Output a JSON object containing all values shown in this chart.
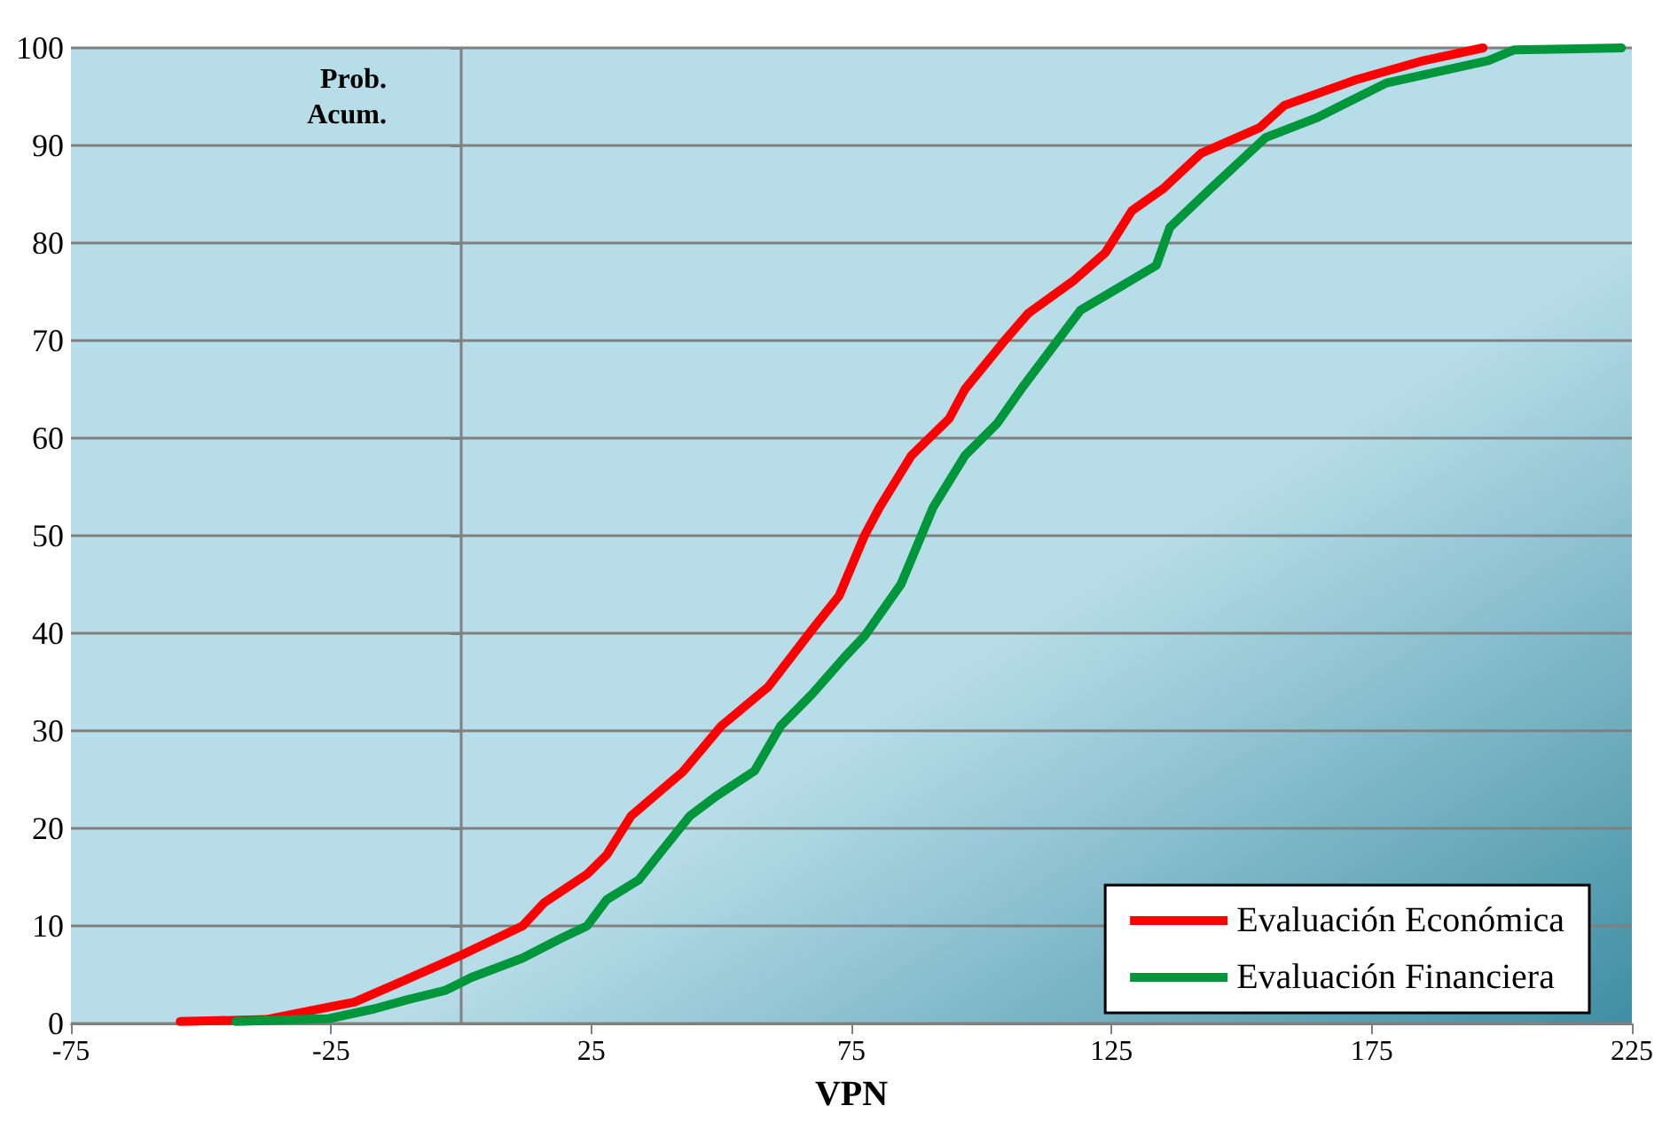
{
  "chart_data": {
    "type": "line",
    "xlabel": "VPN",
    "ylabel": "Prob. Acum.",
    "xlim": [
      -75,
      225
    ],
    "xticks": [
      -75,
      -25,
      25,
      75,
      125,
      175,
      225
    ],
    "ylim": [
      0,
      100
    ],
    "yticks": [
      0,
      10,
      20,
      30,
      40,
      50,
      60,
      70,
      80,
      90,
      100
    ],
    "grid": "y",
    "legend": "bottom right",
    "marker": "none",
    "line_style": "solid",
    "series": [
      {
        "name": "Evaluación Económica",
        "color": "#ff0000",
        "x": [
          -54,
          -37.5,
          -29,
          -20.5,
          -11,
          0,
          11.8,
          16,
          24.2,
          28,
          32.7,
          42.6,
          50,
          59,
          67.5,
          72.6,
          77.5,
          80.4,
          86.5,
          93.8,
          96.8,
          104.3,
          109,
          117.6,
          123.8,
          128.9,
          135,
          142.2,
          153.4,
          158.2,
          171.8,
          185,
          196.4
        ],
        "values": [
          0.2,
          0.4,
          1.3,
          2.2,
          4.4,
          7,
          10,
          12.4,
          15.3,
          17.3,
          21.3,
          25.8,
          30.5,
          34.5,
          40.4,
          43.8,
          50,
          52.9,
          58.2,
          62,
          65,
          69.9,
          72.8,
          76.1,
          79,
          83.3,
          85.6,
          89.2,
          91.8,
          94.1,
          96.7,
          98.7,
          100
        ]
      },
      {
        "name": "Evaluación Financiera",
        "color": "#00963c",
        "x": [
          -43.3,
          -25.4,
          -16.7,
          -10.6,
          -3,
          1.9,
          11.8,
          19.1,
          24.2,
          28,
          34.1,
          39,
          44,
          49,
          56.4,
          61.4,
          67.5,
          73.6,
          77.5,
          84.5,
          90.7,
          96.8,
          103,
          108,
          119,
          133.6,
          136.2,
          143.5,
          154.6,
          164.3,
          177.8,
          197.4,
          202.4,
          223
        ],
        "values": [
          0.2,
          0.5,
          1.5,
          2.4,
          3.4,
          4.7,
          6.7,
          8.7,
          10,
          12.7,
          14.7,
          18,
          21.3,
          23.3,
          25.9,
          30.5,
          33.8,
          37.5,
          39.7,
          45,
          52.9,
          58.2,
          61.5,
          65.3,
          73.1,
          77.7,
          81.6,
          85.3,
          90.8,
          92.8,
          96.4,
          98.7,
          99.8,
          100
        ]
      }
    ]
  }
}
